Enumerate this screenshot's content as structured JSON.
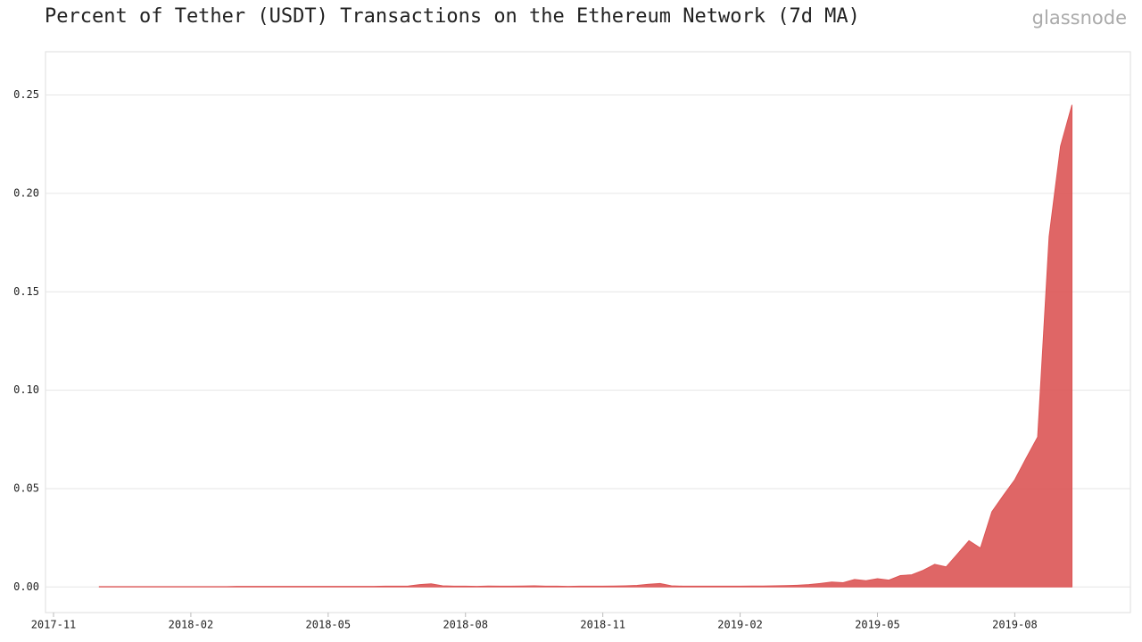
{
  "chart_data": {
    "type": "area",
    "title": "Percent of Tether (USDT) Transactions on the Ethereum Network (7d MA)",
    "watermark": "glassnode",
    "x": [
      "2017-12",
      "2017-12",
      "2017-12",
      "2017-12",
      "2018-01",
      "2018-01",
      "2018-01",
      "2018-01",
      "2018-02",
      "2018-02",
      "2018-02",
      "2018-02",
      "2018-03",
      "2018-03",
      "2018-03",
      "2018-03",
      "2018-04",
      "2018-04",
      "2018-04",
      "2018-04",
      "2018-05",
      "2018-05",
      "2018-05",
      "2018-05",
      "2018-06",
      "2018-06",
      "2018-06",
      "2018-06",
      "2018-07",
      "2018-07",
      "2018-07",
      "2018-07",
      "2018-08",
      "2018-08",
      "2018-08",
      "2018-08",
      "2018-09",
      "2018-09",
      "2018-09",
      "2018-09",
      "2018-10",
      "2018-10",
      "2018-10",
      "2018-10",
      "2018-11",
      "2018-11",
      "2018-11",
      "2018-11",
      "2018-12",
      "2018-12",
      "2018-12",
      "2018-12",
      "2019-01",
      "2019-01",
      "2019-01",
      "2019-01",
      "2019-02",
      "2019-02",
      "2019-02",
      "2019-02",
      "2019-03",
      "2019-03",
      "2019-03",
      "2019-03",
      "2019-04",
      "2019-04",
      "2019-04",
      "2019-04",
      "2019-05",
      "2019-05",
      "2019-05",
      "2019-05",
      "2019-06",
      "2019-06",
      "2019-06",
      "2019-06",
      "2019-07",
      "2019-07",
      "2019-07",
      "2019-07",
      "2019-08",
      "2019-08",
      "2019-08",
      "2019-08",
      "2019-09",
      "2019-09"
    ],
    "series": [
      {
        "color": "#dc5555",
        "values": [
          0.0002,
          0.0002,
          0.0002,
          0.0002,
          0.0002,
          0.0002,
          0.0002,
          0.0002,
          0.0002,
          0.0002,
          0.0002,
          0.0002,
          0.0003,
          0.0003,
          0.0003,
          0.0003,
          0.0003,
          0.0003,
          0.0003,
          0.0003,
          0.0003,
          0.0003,
          0.0003,
          0.0003,
          0.0003,
          0.0004,
          0.0004,
          0.0005,
          0.0012,
          0.0016,
          0.0006,
          0.0004,
          0.0004,
          0.0003,
          0.0005,
          0.0004,
          0.0004,
          0.0005,
          0.0006,
          0.0004,
          0.0004,
          0.0003,
          0.0004,
          0.0004,
          0.0004,
          0.0005,
          0.0006,
          0.0008,
          0.0014,
          0.0018,
          0.0006,
          0.0004,
          0.0004,
          0.0004,
          0.0004,
          0.0004,
          0.0004,
          0.0005,
          0.0005,
          0.0006,
          0.0007,
          0.0009,
          0.0012,
          0.0018,
          0.0025,
          0.0022,
          0.0038,
          0.0032,
          0.0042,
          0.0035,
          0.0058,
          0.0062,
          0.0085,
          0.0115,
          0.0102,
          0.0168,
          0.0235,
          0.0198,
          0.0382,
          0.0465,
          0.0545,
          0.0655,
          0.0762,
          0.178,
          0.224,
          0.245
        ]
      }
    ],
    "xlim": [
      "2017-11",
      "2019-10"
    ],
    "xticks": [
      "2017-11",
      "2018-02",
      "2018-05",
      "2018-08",
      "2018-11",
      "2019-02",
      "2019-05",
      "2019-08"
    ],
    "ylim": [
      -0.013,
      0.272
    ],
    "yticks": [
      {
        "value": 0,
        "label": "0.00"
      },
      0.05,
      {
        "value": 0.1,
        "label": "0.10"
      },
      0.15,
      {
        "value": 0.2,
        "label": "0.20"
      },
      0.25
    ],
    "grid": true
  }
}
